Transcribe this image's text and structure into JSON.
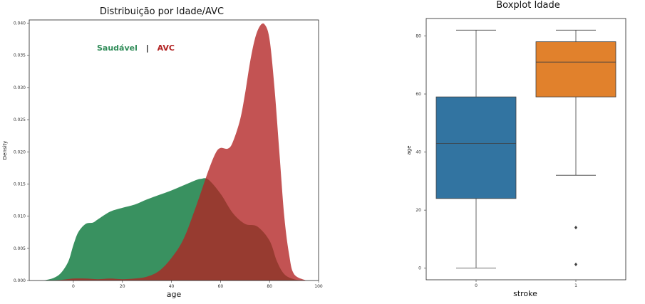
{
  "chart_data": [
    {
      "type": "area",
      "title": "Distribuição por Idade/AVC",
      "xlabel": "age",
      "ylabel": "Density",
      "xlim": [
        -18,
        100
      ],
      "ylim": [
        0,
        0.0405
      ],
      "xticks": [
        "0",
        "20",
        "40",
        "60",
        "80",
        "100"
      ],
      "yticks": [
        "0.000",
        "0.005",
        "0.010",
        "0.015",
        "0.020",
        "0.025",
        "0.030",
        "0.035",
        "0.040"
      ],
      "legend": {
        "position": "top-left",
        "items": [
          {
            "label": "Saudável",
            "color": "#2e8b57"
          },
          {
            "label": "|",
            "color": "#111111"
          },
          {
            "label": "AVC",
            "color": "#b22222"
          }
        ]
      },
      "series": [
        {
          "name": "Saudável",
          "color": "#2e8b57",
          "x": [
            -12,
            -8,
            -5,
            -2,
            0,
            2,
            5,
            8,
            10,
            15,
            20,
            25,
            30,
            35,
            40,
            45,
            50,
            52,
            55,
            60,
            65,
            70,
            75,
            80,
            83,
            86,
            90,
            95
          ],
          "y": [
            0,
            0.0004,
            0.0012,
            0.003,
            0.0055,
            0.0075,
            0.0088,
            0.009,
            0.0095,
            0.0107,
            0.0113,
            0.0118,
            0.0126,
            0.0133,
            0.014,
            0.0148,
            0.0156,
            0.0158,
            0.0157,
            0.0135,
            0.0105,
            0.0088,
            0.0084,
            0.0062,
            0.003,
            0.001,
            0.0002,
            0
          ]
        },
        {
          "name": "AVC",
          "color": "#b22222",
          "x": [
            -12,
            -5,
            0,
            5,
            10,
            15,
            20,
            25,
            30,
            35,
            40,
            45,
            50,
            55,
            58,
            60,
            63,
            65,
            68,
            70,
            72,
            74,
            76,
            78,
            80,
            82,
            84,
            86,
            88,
            90,
            95
          ],
          "y": [
            0,
            0.0001,
            0.0003,
            0.0003,
            0.0002,
            0.0003,
            0.0002,
            0.0003,
            0.0006,
            0.0015,
            0.0035,
            0.0065,
            0.0115,
            0.017,
            0.0198,
            0.0206,
            0.0205,
            0.0215,
            0.025,
            0.029,
            0.0338,
            0.0375,
            0.0395,
            0.0398,
            0.0375,
            0.03,
            0.02,
            0.01,
            0.004,
            0.001,
            0
          ]
        }
      ]
    },
    {
      "type": "box",
      "title": "Boxplot Idade",
      "xlabel": "stroke",
      "ylabel": "age",
      "categories": [
        "0",
        "1"
      ],
      "ylim": [
        -4,
        86
      ],
      "yticks": [
        "0",
        "20",
        "40",
        "60",
        "80"
      ],
      "boxes": [
        {
          "category": "0",
          "min": 0.08,
          "q1": 24,
          "median": 43,
          "q3": 59,
          "max": 82,
          "outliers": [],
          "color": "#3274a1"
        },
        {
          "category": "1",
          "min": 32,
          "q1": 59,
          "median": 71,
          "q3": 78,
          "max": 82,
          "outliers": [
            14,
            1.3
          ],
          "color": "#e1812c"
        }
      ]
    }
  ]
}
